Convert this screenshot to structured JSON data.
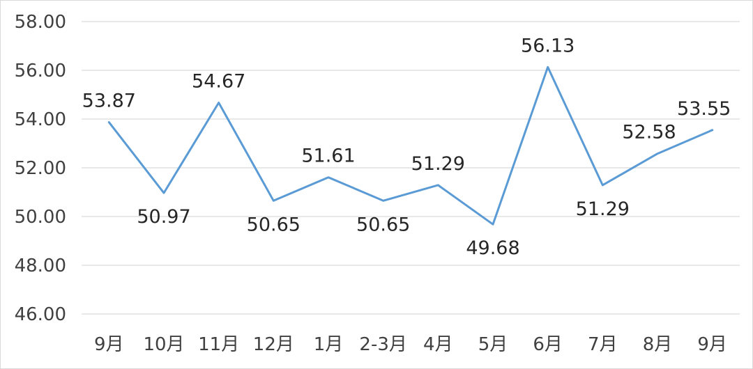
{
  "chart_data": {
    "type": "line",
    "categories": [
      "9月",
      "10月",
      "11月",
      "12月",
      "1月",
      "2-3月",
      "4月",
      "5月",
      "6月",
      "7月",
      "8月",
      "9月"
    ],
    "series": [
      {
        "values": [
          53.87,
          50.97,
          54.67,
          50.65,
          51.61,
          50.65,
          51.29,
          49.68,
          56.13,
          51.29,
          52.58,
          53.55
        ],
        "data_labels": [
          "53.87",
          "50.97",
          "54.67",
          "50.65",
          "51.61",
          "50.65",
          "51.29",
          "49.68",
          "56.13",
          "51.29",
          "52.58",
          "53.55"
        ],
        "color": "#5b9bd5"
      }
    ],
    "title": "",
    "xlabel": "",
    "ylabel": "",
    "ylim": [
      46,
      58
    ],
    "y_ticks": [
      46,
      48,
      50,
      52,
      54,
      56,
      58
    ],
    "y_tick_labels": [
      "46.00",
      "48.00",
      "50.00",
      "52.00",
      "54.00",
      "56.00",
      "58.00"
    ],
    "grid": true,
    "legend": "none"
  }
}
